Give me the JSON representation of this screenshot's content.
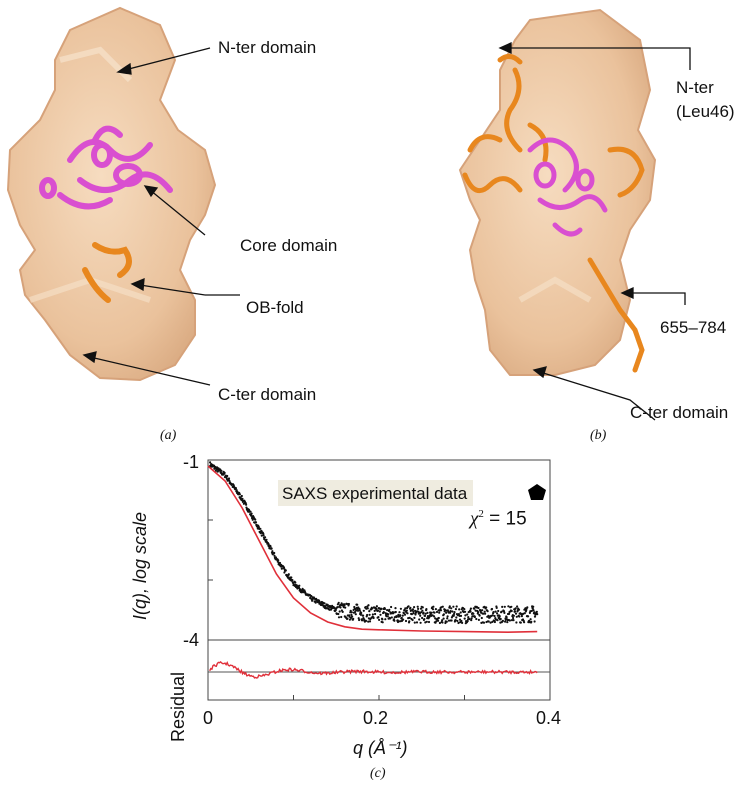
{
  "figure": {
    "panel_a": {
      "letter": "(a)",
      "labels": {
        "n_ter": "N-ter domain",
        "core": "Core domain",
        "ob_fold": "OB-fold",
        "c_ter": "C-ter domain"
      }
    },
    "panel_b": {
      "letter": "(b)",
      "labels": {
        "n_ter_line1": "N-ter",
        "n_ter_line2": "(Leu46)",
        "range": "655–784",
        "c_ter": "C-ter domain"
      }
    },
    "panel_c": {
      "letter": "(c)",
      "legend": "SAXS experimental data",
      "chi_symbol": "χ",
      "chi_sup": "2",
      "chi_value": " = 15",
      "ylabel_main": "I(q), log scale",
      "ylabel_residual": "Residual",
      "xlabel": "q (Å⁻¹)",
      "ytick_top": "-1",
      "ytick_bottom": "-4",
      "xticks": [
        "0",
        "0.2",
        "0.4"
      ]
    }
  },
  "colors": {
    "envelope": "#eec9a4",
    "helix_magenta": "#d94fd0",
    "helix_orange": "#e8871e",
    "data_points": "#111111",
    "fit_line": "#e0303a"
  },
  "chart_data": {
    "type": "scatter",
    "xlabel": "q (Å⁻¹)",
    "ylabel": "I(q), log scale",
    "xlim": [
      0,
      0.4
    ],
    "ylim": [
      -4,
      -1
    ],
    "series": [
      {
        "name": "SAXS experimental data",
        "x": [
          0.0,
          0.02,
          0.04,
          0.06,
          0.08,
          0.1,
          0.12,
          0.14,
          0.16,
          0.18,
          0.2,
          0.25,
          0.3,
          0.35,
          0.385
        ],
        "values": [
          -1.05,
          -1.25,
          -1.65,
          -2.15,
          -2.65,
          -3.05,
          -3.3,
          -3.45,
          -3.52,
          -3.55,
          -3.57,
          -3.58,
          -3.58,
          -3.57,
          -3.57
        ]
      },
      {
        "x": [
          0.0,
          0.02,
          0.04,
          0.06,
          0.08,
          0.1,
          0.12,
          0.14,
          0.16,
          0.18,
          0.2,
          0.25,
          0.3,
          0.35,
          0.385
        ],
        "values": [
          -1.1,
          -1.35,
          -1.8,
          -2.35,
          -2.9,
          -3.3,
          -3.55,
          -3.7,
          -3.78,
          -3.82,
          -3.83,
          -3.85,
          -3.86,
          -3.87,
          -3.86
        ]
      }
    ]
  }
}
